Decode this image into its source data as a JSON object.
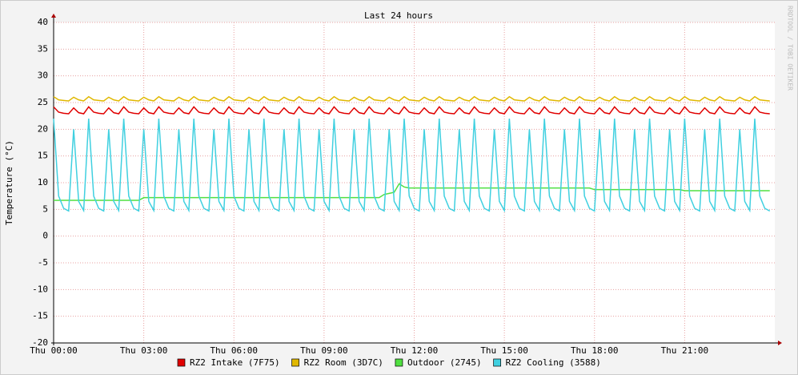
{
  "chart_data": {
    "type": "line",
    "title": "Last 24 hours",
    "y_label": "Temperature (°C)",
    "watermark": "RRDTOOL / TOBI OETIKER",
    "xlim": [
      0,
      1440
    ],
    "ylim": [
      -20,
      40
    ],
    "grid": true,
    "yticks": [
      -20,
      -15,
      -10,
      -5,
      0,
      5,
      10,
      15,
      20,
      25,
      30,
      35,
      40
    ],
    "xticks": [
      {
        "value": 0,
        "label": "Thu 00:00"
      },
      {
        "value": 180,
        "label": "Thu 03:00"
      },
      {
        "value": 360,
        "label": "Thu 06:00"
      },
      {
        "value": 540,
        "label": "Thu 09:00"
      },
      {
        "value": 720,
        "label": "Thu 12:00"
      },
      {
        "value": 900,
        "label": "Thu 15:00"
      },
      {
        "value": 1080,
        "label": "Thu 18:00"
      },
      {
        "value": 1260,
        "label": "Thu 21:00"
      }
    ],
    "x": [
      0,
      10,
      20,
      30,
      40,
      50,
      60,
      70,
      80,
      90,
      100,
      110,
      120,
      130,
      140,
      150,
      160,
      170,
      180,
      190,
      200,
      210,
      220,
      230,
      240,
      250,
      260,
      270,
      280,
      290,
      300,
      310,
      320,
      330,
      340,
      350,
      360,
      370,
      380,
      390,
      400,
      410,
      420,
      430,
      440,
      450,
      460,
      470,
      480,
      490,
      500,
      510,
      520,
      530,
      540,
      550,
      560,
      570,
      580,
      590,
      600,
      610,
      620,
      630,
      640,
      650,
      660,
      670,
      680,
      690,
      700,
      710,
      720,
      730,
      740,
      750,
      760,
      770,
      780,
      790,
      800,
      810,
      820,
      830,
      840,
      850,
      860,
      870,
      880,
      890,
      900,
      910,
      920,
      930,
      940,
      950,
      960,
      970,
      980,
      990,
      1000,
      1010,
      1020,
      1030,
      1040,
      1050,
      1060,
      1070,
      1080,
      1090,
      1100,
      1110,
      1120,
      1130,
      1140,
      1150,
      1160,
      1170,
      1180,
      1190,
      1200,
      1210,
      1220,
      1230,
      1240,
      1250,
      1260,
      1270,
      1280,
      1290,
      1300,
      1310,
      1320,
      1330,
      1340,
      1350,
      1360,
      1370,
      1380,
      1390,
      1400,
      1410,
      1420,
      1430
    ],
    "series": [
      {
        "name": "RZ2 Intake (7F75)",
        "color": "#e00000",
        "values": [
          24.2,
          23.2,
          23,
          22.9,
          24,
          23.1,
          22.9,
          24.2,
          23.2,
          23,
          22.9,
          24,
          23.1,
          22.9,
          24.2,
          23.2,
          23,
          22.9,
          24,
          23.1,
          22.9,
          24.2,
          23.2,
          23,
          22.9,
          24,
          23.1,
          22.9,
          24.2,
          23.2,
          23,
          22.9,
          24,
          23.1,
          22.9,
          24.2,
          23.2,
          23,
          22.9,
          24,
          23.1,
          22.9,
          24.2,
          23.2,
          23,
          22.9,
          24,
          23.1,
          22.9,
          24.2,
          23.2,
          23,
          22.9,
          24,
          23.1,
          22.9,
          24.2,
          23.2,
          23,
          22.9,
          24,
          23.1,
          22.9,
          24.2,
          23.2,
          23,
          22.9,
          24,
          23.1,
          22.9,
          24.2,
          23.2,
          23,
          22.9,
          24,
          23.1,
          22.9,
          24.2,
          23.2,
          23,
          22.9,
          24,
          23.1,
          22.9,
          24.2,
          23.2,
          23,
          22.9,
          24,
          23.1,
          22.9,
          24.2,
          23.2,
          23,
          22.9,
          24,
          23.1,
          22.9,
          24.2,
          23.2,
          23,
          22.9,
          24,
          23.1,
          22.9,
          24.2,
          23.2,
          23,
          22.9,
          24,
          23.1,
          22.9,
          24.2,
          23.2,
          23,
          22.9,
          24,
          23.1,
          22.9,
          24.2,
          23.2,
          23,
          22.9,
          24,
          23.1,
          22.9,
          24.2,
          23.2,
          23,
          22.9,
          24,
          23.1,
          22.9,
          24.2,
          23.2,
          23,
          22.9,
          24,
          23.1,
          22.9,
          24.2,
          23.2,
          23,
          22.9
        ]
      },
      {
        "name": "RZ2 Room (3D7C)",
        "color": "#e0b800",
        "values": [
          26.1,
          25.5,
          25.4,
          25.3,
          26,
          25.5,
          25.3,
          26.1,
          25.5,
          25.4,
          25.3,
          26,
          25.5,
          25.3,
          26.1,
          25.5,
          25.4,
          25.3,
          26,
          25.5,
          25.3,
          26.1,
          25.5,
          25.4,
          25.3,
          26,
          25.5,
          25.3,
          26.1,
          25.5,
          25.4,
          25.3,
          26,
          25.5,
          25.3,
          26.1,
          25.5,
          25.4,
          25.3,
          26,
          25.5,
          25.3,
          26.1,
          25.5,
          25.4,
          25.3,
          26,
          25.5,
          25.3,
          26.1,
          25.5,
          25.4,
          25.3,
          26,
          25.5,
          25.3,
          26.1,
          25.5,
          25.4,
          25.3,
          26,
          25.5,
          25.3,
          26.1,
          25.5,
          25.4,
          25.3,
          26,
          25.5,
          25.3,
          26.1,
          25.5,
          25.4,
          25.3,
          26,
          25.5,
          25.3,
          26.1,
          25.5,
          25.4,
          25.3,
          26,
          25.5,
          25.3,
          26.1,
          25.5,
          25.4,
          25.3,
          26,
          25.5,
          25.3,
          26.1,
          25.5,
          25.4,
          25.3,
          26,
          25.5,
          25.3,
          26.1,
          25.5,
          25.4,
          25.3,
          26,
          25.5,
          25.3,
          26.1,
          25.5,
          25.4,
          25.3,
          26,
          25.5,
          25.3,
          26.1,
          25.5,
          25.4,
          25.3,
          26,
          25.5,
          25.3,
          26.1,
          25.5,
          25.4,
          25.3,
          26,
          25.5,
          25.3,
          26.1,
          25.5,
          25.4,
          25.3,
          26,
          25.5,
          25.3,
          26.1,
          25.5,
          25.4,
          25.3,
          26,
          25.5,
          25.3,
          26.1,
          25.5,
          25.4,
          25.3
        ]
      },
      {
        "name": "Outdoor (2745)",
        "color": "#50e040",
        "values": [
          6.7,
          6.7,
          6.7,
          6.7,
          6.7,
          6.7,
          6.7,
          6.7,
          6.7,
          6.7,
          6.7,
          6.7,
          6.7,
          6.7,
          6.7,
          6.7,
          6.7,
          6.7,
          7.2,
          7.2,
          7.2,
          7.2,
          7.2,
          7.2,
          7.2,
          7.2,
          7.2,
          7.2,
          7.2,
          7.2,
          7.2,
          7.2,
          7.2,
          7.2,
          7.2,
          7.2,
          7.2,
          7.2,
          7.2,
          7.2,
          7.2,
          7.2,
          7.2,
          7.2,
          7.2,
          7.2,
          7.2,
          7.2,
          7.2,
          7.2,
          7.2,
          7.2,
          7.2,
          7.2,
          7.2,
          7.2,
          7.2,
          7.2,
          7.2,
          7.2,
          7.2,
          7.2,
          7.2,
          7.2,
          7.2,
          7.2,
          7.8,
          8,
          8.2,
          9.8,
          9.2,
          9,
          9,
          9,
          9,
          9,
          9,
          9,
          9,
          9,
          9,
          9,
          9,
          9,
          9,
          9,
          9,
          9,
          9,
          9,
          9,
          9,
          9,
          9,
          9,
          9,
          9,
          9,
          9,
          9,
          9,
          9,
          9,
          9,
          9,
          9,
          9,
          9,
          8.7,
          8.7,
          8.7,
          8.7,
          8.7,
          8.7,
          8.7,
          8.7,
          8.7,
          8.7,
          8.7,
          8.7,
          8.7,
          8.7,
          8.7,
          8.7,
          8.7,
          8.7,
          8.5,
          8.5,
          8.5,
          8.5,
          8.5,
          8.5,
          8.5,
          8.5,
          8.5,
          8.5,
          8.5,
          8.5,
          8.5,
          8.5,
          8.5,
          8.5,
          8.5,
          8.5
        ]
      },
      {
        "name": "RZ2 Cooling (3588)",
        "color": "#40d0e0",
        "values": [
          22,
          7.5,
          5.2,
          4.7,
          20,
          6.5,
          4.8,
          22,
          7.5,
          5.2,
          4.7,
          20,
          6.5,
          4.8,
          22,
          7.5,
          5.2,
          4.7,
          20,
          6.5,
          4.8,
          22,
          7.5,
          5.2,
          4.7,
          20,
          6.5,
          4.8,
          22,
          7.5,
          5.2,
          4.7,
          20,
          6.5,
          4.8,
          22,
          7.5,
          5.2,
          4.7,
          20,
          6.5,
          4.8,
          22,
          7.5,
          5.2,
          4.7,
          20,
          6.5,
          4.8,
          22,
          7.5,
          5.2,
          4.7,
          20,
          6.5,
          4.8,
          22,
          7.5,
          5.2,
          4.7,
          20,
          6.5,
          4.8,
          22,
          7.5,
          5.2,
          4.7,
          20,
          6.5,
          4.8,
          22,
          7.5,
          5.2,
          4.7,
          20,
          6.5,
          4.8,
          22,
          7.5,
          5.2,
          4.7,
          20,
          6.5,
          4.8,
          22,
          7.5,
          5.2,
          4.7,
          20,
          6.5,
          4.8,
          22,
          7.5,
          5.2,
          4.7,
          20,
          6.5,
          4.8,
          22,
          7.5,
          5.2,
          4.7,
          20,
          6.5,
          4.8,
          22,
          7.5,
          5.2,
          4.7,
          20,
          6.5,
          4.8,
          22,
          7.5,
          5.2,
          4.7,
          20,
          6.5,
          4.8,
          22,
          7.5,
          5.2,
          4.7,
          20,
          6.5,
          4.8,
          22,
          7.5,
          5.2,
          4.7,
          20,
          6.5,
          4.8,
          22,
          7.5,
          5.2,
          4.7,
          20,
          6.5,
          4.8,
          22,
          7.5,
          5.2,
          4.7
        ]
      }
    ]
  }
}
